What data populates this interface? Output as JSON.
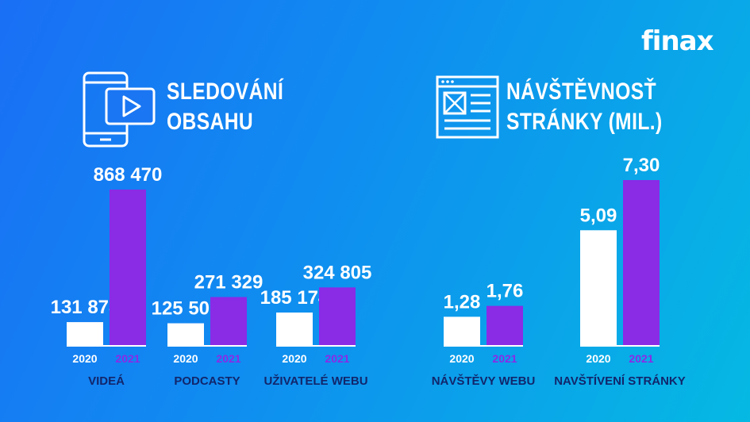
{
  "brand": {
    "logo_text": "finax"
  },
  "colors": {
    "bar_2020": "#ffffff",
    "bar_2021": "#8a2be6",
    "category_text": "#12266b",
    "year_2020_text": "#ffffff",
    "year_2021_text": "#8a2be6"
  },
  "panels": [
    {
      "icon": "phone-video-icon",
      "title_lines": [
        "SLEDOVÁNÍ",
        "OBSAHU"
      ]
    },
    {
      "icon": "webpage-icon",
      "title_lines": [
        "NÁVŠTĚVNOSŤ",
        "STRÁNKY (MIL.)"
      ]
    }
  ],
  "chart_data": [
    {
      "type": "bar",
      "title": "SLEDOVÁNÍ OBSAHU",
      "categories": [
        "VIDEÁ",
        "PODCASTY",
        "UŽIVATELÉ WEBU"
      ],
      "series": [
        {
          "name": "2020",
          "values": [
            131878,
            125500,
            185174
          ],
          "labels": [
            "131 878",
            "125 500",
            "185 174"
          ]
        },
        {
          "name": "2021",
          "values": [
            868470,
            271329,
            324805
          ],
          "labels": [
            "868 470",
            "271 329",
            "324 805"
          ]
        }
      ],
      "ylim": [
        0,
        868470
      ]
    },
    {
      "type": "bar",
      "title": "NÁVŠTĚVNOSŤ STRÁNKY (MIL.)",
      "categories": [
        "NÁVŠTĚVY WEBU",
        "NAVŠTÍVENÍ STRÁNKY"
      ],
      "series": [
        {
          "name": "2020",
          "values": [
            1.28,
            5.09
          ],
          "labels": [
            "1,28",
            "5,09"
          ]
        },
        {
          "name": "2021",
          "values": [
            1.76,
            7.3
          ],
          "labels": [
            "1,76",
            "7,30"
          ]
        }
      ],
      "ylim": [
        0,
        7.3
      ]
    }
  ]
}
